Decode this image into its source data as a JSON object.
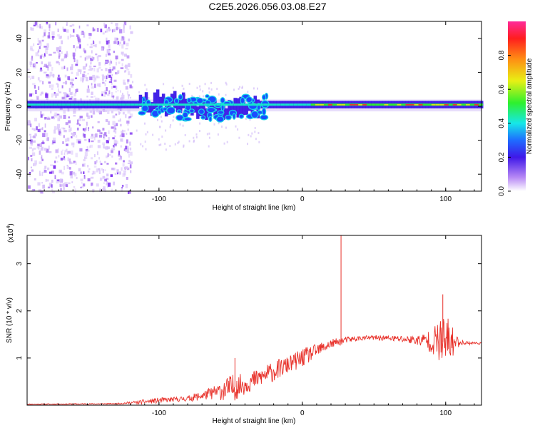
{
  "title": "C2E5.2026.056.03.08.E27",
  "charts": [
    {
      "type": "heatmap",
      "name": "spectrogram",
      "xlabel": "Height of straight line (km)",
      "ylabel": "Frequency (Hz)",
      "xlim": [
        -192,
        125
      ],
      "ylim": [
        -50,
        50
      ],
      "x_ticks": [
        "-100",
        "0",
        "100"
      ],
      "x_tick_values": [
        -100,
        0,
        100
      ],
      "y_ticks": [
        "40",
        "20",
        "0",
        "-20",
        "-40"
      ],
      "y_tick_values": [
        40,
        20,
        0,
        -20,
        -40
      ],
      "colorbar": {
        "label": "Normalized spectral amplitude",
        "ticks": [
          "0.0",
          "0.2",
          "0.4",
          "0.6",
          "0.8"
        ],
        "tick_values": [
          0.0,
          0.2,
          0.4,
          0.6,
          0.8
        ],
        "range": [
          0,
          1
        ]
      },
      "band": {
        "description_values": "dominant tone near 0 Hz",
        "center_hz": 1,
        "noise_region_x": [
          -192,
          -130
        ],
        "scatter_region_x": [
          -115,
          -30
        ],
        "stable_region_x": [
          5,
          125
        ]
      }
    },
    {
      "type": "line",
      "name": "snr",
      "xlabel": "Height of straight line (km)",
      "ylabel": "SNR (10 * v/v)",
      "multiplier": "(x10",
      "multiplier_exp": "4",
      "multiplier_close": ")",
      "xlim": [
        -192,
        125
      ],
      "ylim": [
        0,
        3.6
      ],
      "x_ticks": [
        "-100",
        "0",
        "100"
      ],
      "x_tick_values": [
        -100,
        0,
        100
      ],
      "y_ticks": [
        "3",
        "2",
        "1"
      ],
      "y_tick_values": [
        3,
        2,
        1
      ],
      "color": "#e8322b",
      "envelope": {
        "x": [
          -192,
          -130,
          -115,
          -100,
          -90,
          -80,
          -70,
          -60,
          -50,
          -40,
          -30,
          -20,
          -10,
          0,
          10,
          20,
          30,
          40,
          50,
          60,
          70,
          80,
          90,
          100,
          110,
          125
        ],
        "base": [
          0.02,
          0.03,
          0.06,
          0.1,
          0.12,
          0.14,
          0.2,
          0.28,
          0.35,
          0.45,
          0.58,
          0.72,
          0.85,
          1.0,
          1.15,
          1.3,
          1.38,
          1.42,
          1.43,
          1.42,
          1.4,
          1.38,
          1.36,
          1.34,
          1.33,
          1.31
        ],
        "amp": [
          0.01,
          0.01,
          0.04,
          0.06,
          0.05,
          0.06,
          0.1,
          0.15,
          0.3,
          0.22,
          0.2,
          0.22,
          0.18,
          0.2,
          0.15,
          0.1,
          0.07,
          0.05,
          0.05,
          0.06,
          0.08,
          0.1,
          0.25,
          0.6,
          0.05,
          0.02
        ]
      },
      "spikes": [
        {
          "x": 27,
          "y": 3.6
        },
        {
          "x": 98,
          "y": 2.35
        },
        {
          "x": -47,
          "y": 1.0
        }
      ]
    }
  ]
}
